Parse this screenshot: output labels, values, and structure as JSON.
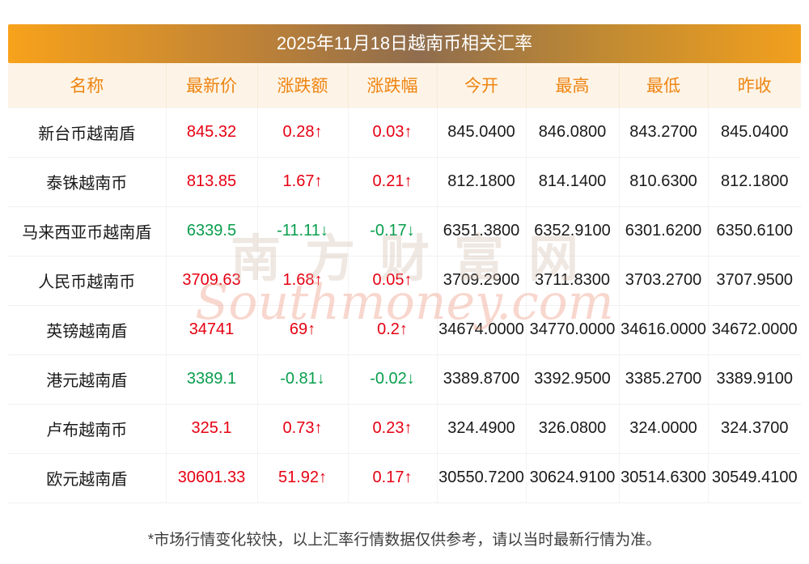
{
  "banner": {
    "title": "2025年11月18日越南币相关汇率"
  },
  "table": {
    "headers": [
      "名称",
      "最新价",
      "涨跌额",
      "涨跌幅",
      "今开",
      "最高",
      "最低",
      "昨收"
    ],
    "rows": [
      {
        "name": "新台币越南盾",
        "latest": "845.32",
        "change": "0.28↑",
        "pct": "0.03↑",
        "open": "845.0400",
        "high": "846.0800",
        "low": "843.2700",
        "prev": "845.0400",
        "trend": "up"
      },
      {
        "name": "泰铢越南币",
        "latest": "813.85",
        "change": "1.67↑",
        "pct": "0.21↑",
        "open": "812.1800",
        "high": "814.1400",
        "low": "810.6300",
        "prev": "812.1800",
        "trend": "up"
      },
      {
        "name": "马来西亚币越南盾",
        "latest": "6339.5",
        "change": "-11.11↓",
        "pct": "-0.17↓",
        "open": "6351.3800",
        "high": "6352.9100",
        "low": "6301.6200",
        "prev": "6350.6100",
        "trend": "down"
      },
      {
        "name": "人民币越南币",
        "latest": "3709.63",
        "change": "1.68↑",
        "pct": "0.05↑",
        "open": "3709.2900",
        "high": "3711.8300",
        "low": "3703.2700",
        "prev": "3707.9500",
        "trend": "up"
      },
      {
        "name": "英镑越南盾",
        "latest": "34741",
        "change": "69↑",
        "pct": "0.2↑",
        "open": "34674.0000",
        "high": "34770.0000",
        "low": "34616.0000",
        "prev": "34672.0000",
        "trend": "up"
      },
      {
        "name": "港元越南盾",
        "latest": "3389.1",
        "change": "-0.81↓",
        "pct": "-0.02↓",
        "open": "3389.8700",
        "high": "3392.9500",
        "low": "3385.2700",
        "prev": "3389.9100",
        "trend": "down"
      },
      {
        "name": "卢布越南币",
        "latest": "325.1",
        "change": "0.73↑",
        "pct": "0.23↑",
        "open": "324.4900",
        "high": "326.0800",
        "low": "324.0000",
        "prev": "324.3700",
        "trend": "up"
      },
      {
        "name": "欧元越南盾",
        "latest": "30601.33",
        "change": "51.92↑",
        "pct": "0.17↑",
        "open": "30550.7200",
        "high": "30624.9100",
        "low": "30514.6300",
        "prev": "30549.4100",
        "trend": "up"
      }
    ]
  },
  "watermark": {
    "cn": "南方财富网",
    "en": "Southmoney.com"
  },
  "footer": {
    "note": "*市场行情变化较快，以上汇率行情数据仅供参考，请以当时最新行情为准。"
  },
  "colors": {
    "up": "#e60012",
    "down": "#089e4c",
    "header_text": "#ee8411",
    "header_bg": "#fdf4e7",
    "banner_gradient_start": "#f8a21b",
    "banner_gradient_mid": "#8f6d4e"
  }
}
